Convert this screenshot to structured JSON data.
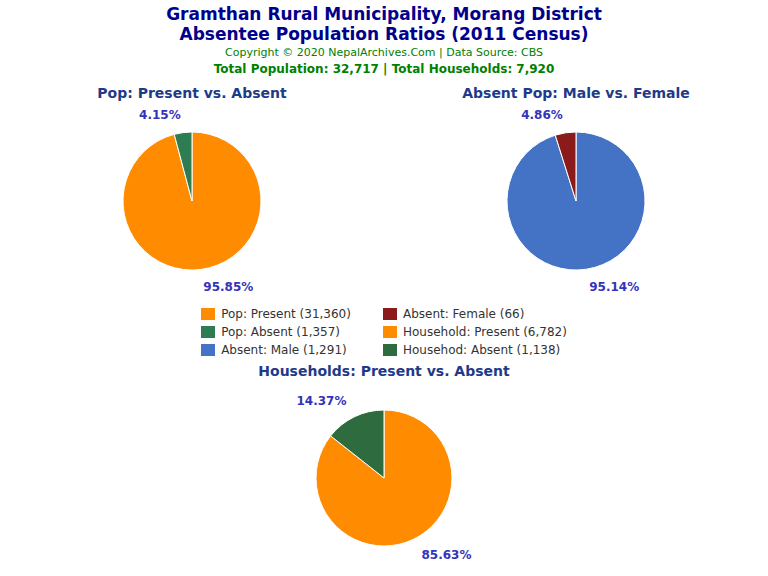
{
  "title": "Gramthan Rural Municipality, Morang District",
  "subtitle": "Absentee Population Ratios (2011 Census)",
  "annotations": [
    "Copyright © 2020 NepalArchives.Com | Data Source: CBS",
    "Total Population: 32,717 | Total Households: 7,920"
  ],
  "chart_data": [
    {
      "type": "pie",
      "title": "Pop: Present vs. Absent",
      "categories": [
        "Pop: Present (31,360)",
        "Pop: Absent (1,357)"
      ],
      "values": [
        95.85,
        4.15
      ],
      "value_labels": [
        "95.85%",
        "4.15%"
      ],
      "colors": [
        "#FF8C00",
        "#2E7D52"
      ],
      "data_labels": true
    },
    {
      "type": "pie",
      "title": "Absent Pop: Male vs. Female",
      "categories": [
        "Absent: Male (1,291)",
        "Absent: Female (66)"
      ],
      "values": [
        95.14,
        4.86
      ],
      "value_labels": [
        "95.14%",
        "4.86%"
      ],
      "colors": [
        "#4472C4",
        "#8B1A1A"
      ],
      "data_labels": true
    },
    {
      "type": "pie",
      "title": "Households: Present vs. Absent",
      "categories": [
        "Household: Present (6,782)",
        "Househod: Absent (1,138)"
      ],
      "values": [
        85.63,
        14.37
      ],
      "value_labels": [
        "85.63%",
        "14.37%"
      ],
      "colors": [
        "#FF8C00",
        "#2E6B3E"
      ],
      "data_labels": true
    }
  ]
}
